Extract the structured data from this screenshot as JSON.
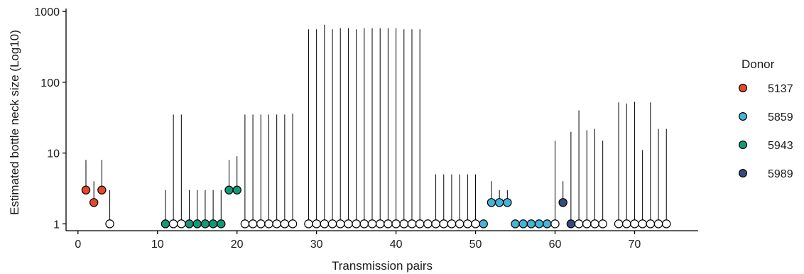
{
  "chart_data": {
    "type": "scatter",
    "xlabel": "Transmission pairs",
    "ylabel": "Estimated bottle neck size (Log10)",
    "yscale": "log10",
    "xlim": [
      -1.5,
      78
    ],
    "ylim": [
      0.8,
      1100
    ],
    "x_ticks": [
      0,
      10,
      20,
      30,
      40,
      50,
      60,
      70
    ],
    "y_ticks": [
      1,
      10,
      100,
      1000
    ],
    "y_tick_labels": [
      "1",
      "10",
      "100",
      "1000"
    ],
    "grid": false,
    "legend": {
      "title": "Donor",
      "placement": "right",
      "entries": [
        {
          "label": "5137",
          "color": "#e8472a"
        },
        {
          "label": "5859",
          "color": "#45b4d8"
        },
        {
          "label": "5943",
          "color": "#119a78"
        },
        {
          "label": "5989",
          "color": "#344b7c"
        }
      ]
    },
    "none_color": "#ffffff",
    "points": [
      {
        "x": 1,
        "y": 3,
        "upper": 8,
        "donor": "5137"
      },
      {
        "x": 2,
        "y": 2,
        "upper": 4,
        "donor": "5137"
      },
      {
        "x": 3,
        "y": 3,
        "upper": 8,
        "donor": "5137"
      },
      {
        "x": 4,
        "y": 1,
        "upper": 3,
        "donor": ""
      },
      {
        "x": 11,
        "y": 1,
        "upper": 3,
        "donor": "5943"
      },
      {
        "x": 12,
        "y": 1,
        "upper": 35,
        "donor": ""
      },
      {
        "x": 13,
        "y": 1,
        "upper": 35,
        "donor": ""
      },
      {
        "x": 14,
        "y": 1,
        "upper": 3,
        "donor": "5943"
      },
      {
        "x": 15,
        "y": 1,
        "upper": 3,
        "donor": "5943"
      },
      {
        "x": 16,
        "y": 1,
        "upper": 3,
        "donor": "5943"
      },
      {
        "x": 17,
        "y": 1,
        "upper": 3,
        "donor": "5943"
      },
      {
        "x": 18,
        "y": 1,
        "upper": 3,
        "donor": "5943"
      },
      {
        "x": 19,
        "y": 3,
        "upper": 8,
        "donor": "5943"
      },
      {
        "x": 20,
        "y": 3,
        "upper": 9,
        "donor": "5943"
      },
      {
        "x": 21,
        "y": 1,
        "upper": 35,
        "donor": ""
      },
      {
        "x": 22,
        "y": 1,
        "upper": 35,
        "donor": ""
      },
      {
        "x": 23,
        "y": 1,
        "upper": 35,
        "donor": ""
      },
      {
        "x": 24,
        "y": 1,
        "upper": 35,
        "donor": ""
      },
      {
        "x": 25,
        "y": 1,
        "upper": 35,
        "donor": ""
      },
      {
        "x": 26,
        "y": 1,
        "upper": 35,
        "donor": ""
      },
      {
        "x": 27,
        "y": 1,
        "upper": 36,
        "donor": ""
      },
      {
        "x": 29,
        "y": 1,
        "upper": 560,
        "donor": ""
      },
      {
        "x": 30,
        "y": 1,
        "upper": 560,
        "donor": ""
      },
      {
        "x": 31,
        "y": 1,
        "upper": 650,
        "donor": ""
      },
      {
        "x": 32,
        "y": 1,
        "upper": 560,
        "donor": ""
      },
      {
        "x": 33,
        "y": 1,
        "upper": 580,
        "donor": ""
      },
      {
        "x": 34,
        "y": 1,
        "upper": 580,
        "donor": ""
      },
      {
        "x": 35,
        "y": 1,
        "upper": 560,
        "donor": ""
      },
      {
        "x": 36,
        "y": 1,
        "upper": 580,
        "donor": ""
      },
      {
        "x": 37,
        "y": 1,
        "upper": 580,
        "donor": ""
      },
      {
        "x": 38,
        "y": 1,
        "upper": 580,
        "donor": ""
      },
      {
        "x": 39,
        "y": 1,
        "upper": 580,
        "donor": ""
      },
      {
        "x": 40,
        "y": 1,
        "upper": 580,
        "donor": ""
      },
      {
        "x": 41,
        "y": 1,
        "upper": 560,
        "donor": ""
      },
      {
        "x": 42,
        "y": 1,
        "upper": 560,
        "donor": ""
      },
      {
        "x": 43,
        "y": 1,
        "upper": 560,
        "donor": ""
      },
      {
        "x": 44,
        "y": 1,
        "upper": 1,
        "donor": ""
      },
      {
        "x": 45,
        "y": 1,
        "upper": 5,
        "donor": ""
      },
      {
        "x": 46,
        "y": 1,
        "upper": 5,
        "donor": ""
      },
      {
        "x": 47,
        "y": 1,
        "upper": 5,
        "donor": ""
      },
      {
        "x": 48,
        "y": 1,
        "upper": 5,
        "donor": ""
      },
      {
        "x": 49,
        "y": 1,
        "upper": 5,
        "donor": ""
      },
      {
        "x": 50,
        "y": 1,
        "upper": 5,
        "donor": ""
      },
      {
        "x": 51,
        "y": 1,
        "upper": 1,
        "donor": "5859"
      },
      {
        "x": 52,
        "y": 2,
        "upper": 4,
        "donor": "5859"
      },
      {
        "x": 53,
        "y": 2,
        "upper": 3,
        "donor": "5859"
      },
      {
        "x": 54,
        "y": 2,
        "upper": 3,
        "donor": "5859"
      },
      {
        "x": 55,
        "y": 1,
        "upper": 1,
        "donor": "5859"
      },
      {
        "x": 56,
        "y": 1,
        "upper": 1,
        "donor": "5859"
      },
      {
        "x": 57,
        "y": 1,
        "upper": 1,
        "donor": "5859"
      },
      {
        "x": 58,
        "y": 1,
        "upper": 1,
        "donor": "5859"
      },
      {
        "x": 59,
        "y": 1,
        "upper": 1,
        "donor": "5859"
      },
      {
        "x": 60,
        "y": 1,
        "upper": 15,
        "donor": ""
      },
      {
        "x": 61,
        "y": 2,
        "upper": 4,
        "donor": "5989"
      },
      {
        "x": 62,
        "y": 1,
        "upper": 20,
        "donor": "5989"
      },
      {
        "x": 63,
        "y": 1,
        "upper": 40,
        "donor": ""
      },
      {
        "x": 64,
        "y": 1,
        "upper": 21,
        "donor": ""
      },
      {
        "x": 65,
        "y": 1,
        "upper": 22,
        "donor": ""
      },
      {
        "x": 66,
        "y": 1,
        "upper": 15,
        "donor": ""
      },
      {
        "x": 68,
        "y": 1,
        "upper": 52,
        "donor": ""
      },
      {
        "x": 69,
        "y": 1,
        "upper": 50,
        "donor": ""
      },
      {
        "x": 70,
        "y": 1,
        "upper": 53,
        "donor": ""
      },
      {
        "x": 71,
        "y": 1,
        "upper": 11,
        "donor": ""
      },
      {
        "x": 72,
        "y": 1,
        "upper": 52,
        "donor": ""
      },
      {
        "x": 73,
        "y": 1,
        "upper": 22,
        "donor": ""
      },
      {
        "x": 74,
        "y": 1,
        "upper": 22,
        "donor": ""
      }
    ]
  }
}
